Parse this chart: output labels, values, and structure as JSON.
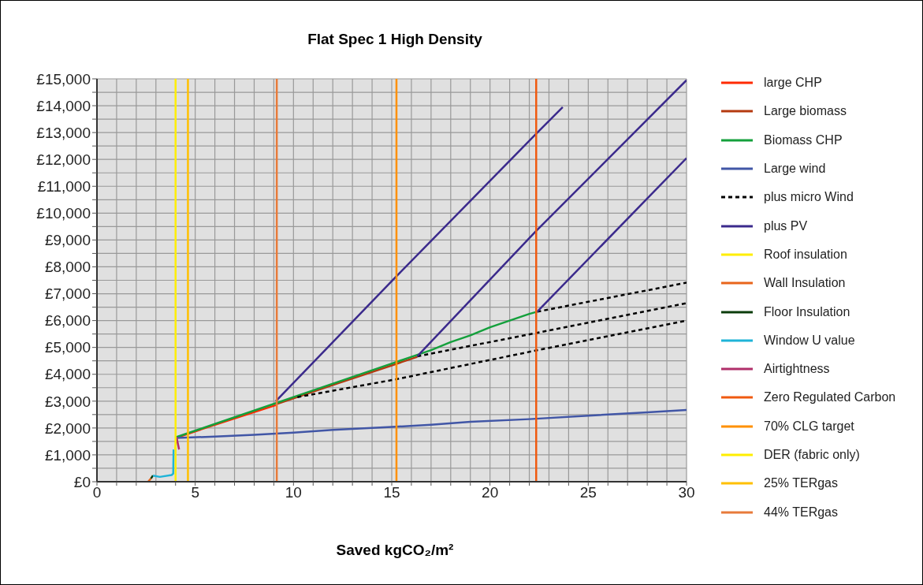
{
  "chart_data": {
    "type": "line",
    "title": "Flat Spec 1 High Density",
    "xlabel": "Saved kgCO₂/m²",
    "xlim": [
      0,
      30
    ],
    "xticks": [
      0,
      {
        "value": 1,
        "label": null
      },
      {
        "value": 2,
        "label": null
      },
      {
        "value": 3,
        "label": null
      },
      {
        "value": 4,
        "label": null
      },
      5,
      {
        "value": 6,
        "label": null
      },
      {
        "value": 7,
        "label": null
      },
      {
        "value": 8,
        "label": null
      },
      {
        "value": 9,
        "label": null
      },
      10,
      {
        "value": 11,
        "label": null
      },
      {
        "value": 12,
        "label": null
      },
      {
        "value": 13,
        "label": null
      },
      {
        "value": 14,
        "label": null
      },
      15,
      {
        "value": 16,
        "label": null
      },
      {
        "value": 17,
        "label": null
      },
      {
        "value": 18,
        "label": null
      },
      {
        "value": 19,
        "label": null
      },
      20,
      {
        "value": 21,
        "label": null
      },
      {
        "value": 22,
        "label": null
      },
      {
        "value": 23,
        "label": null
      },
      {
        "value": 24,
        "label": null
      },
      25,
      {
        "value": 26,
        "label": null
      },
      {
        "value": 27,
        "label": null
      },
      {
        "value": 28,
        "label": null
      },
      {
        "value": 29,
        "label": null
      },
      30
    ],
    "ylim": [
      0,
      15000
    ],
    "yticks": [
      {
        "value": 0,
        "label": "£0"
      },
      {
        "value": 500,
        "label": null
      },
      {
        "value": 1000,
        "label": "£1,000"
      },
      {
        "value": 1500,
        "label": null
      },
      {
        "value": 2000,
        "label": "£2,000"
      },
      {
        "value": 2500,
        "label": null
      },
      {
        "value": 3000,
        "label": "£3,000"
      },
      {
        "value": 3500,
        "label": null
      },
      {
        "value": 4000,
        "label": "£4,000"
      },
      {
        "value": 4500,
        "label": null
      },
      {
        "value": 5000,
        "label": "£5,000"
      },
      {
        "value": 5500,
        "label": null
      },
      {
        "value": 6000,
        "label": "£6,000"
      },
      {
        "value": 6500,
        "label": null
      },
      {
        "value": 7000,
        "label": "£7,000"
      },
      {
        "value": 7500,
        "label": null
      },
      {
        "value": 8000,
        "label": "£8,000"
      },
      {
        "value": 8500,
        "label": null
      },
      {
        "value": 9000,
        "label": "£9,000"
      },
      {
        "value": 9500,
        "label": null
      },
      {
        "value": 10000,
        "label": "£10,000"
      },
      {
        "value": 10500,
        "label": null
      },
      {
        "value": 11000,
        "label": "£11,000"
      },
      {
        "value": 11500,
        "label": null
      },
      {
        "value": 12000,
        "label": "£12,000"
      },
      {
        "value": 12500,
        "label": null
      },
      {
        "value": 13000,
        "label": "£13,000"
      },
      {
        "value": 13500,
        "label": null
      },
      {
        "value": 14000,
        "label": "£14,000"
      },
      {
        "value": 14500,
        "label": null
      },
      {
        "value": 15000,
        "label": "£15,000"
      }
    ],
    "grid": true,
    "legend": "right",
    "series": [
      {
        "name": "large CHP",
        "color": "#ff2a00",
        "x": [
          4,
          6,
          9.1
        ],
        "values": [
          1630,
          2120,
          2850
        ]
      },
      {
        "name": "Large biomass",
        "color": "#b53a10",
        "x": [
          9.1,
          12,
          15,
          16.3
        ],
        "values": [
          2880,
          3600,
          4330,
          4650
        ]
      },
      {
        "name": "Biomass CHP",
        "color": "#14a03c",
        "x": [
          4,
          5,
          6,
          7,
          8,
          9,
          10,
          11,
          12,
          13,
          14,
          15,
          16,
          17,
          18,
          19,
          20,
          21,
          22,
          22.4
        ],
        "values": [
          1650,
          1900,
          2150,
          2400,
          2650,
          2900,
          3150,
          3400,
          3650,
          3900,
          4150,
          4400,
          4650,
          4900,
          5200,
          5450,
          5750,
          6000,
          6250,
          6330
        ]
      },
      {
        "name": "Large wind",
        "color": "#4156a6",
        "x": [
          4,
          6,
          8,
          10,
          12,
          15,
          17,
          19,
          22,
          25,
          28,
          30
        ],
        "values": [
          1630,
          1680,
          1750,
          1830,
          1930,
          2040,
          2120,
          2230,
          2330,
          2460,
          2580,
          2670
        ]
      },
      {
        "name": "plus micro Wind",
        "color": "#000000",
        "line_style": "dashed",
        "x": [
          10.2,
          15.2,
          22.3,
          30
        ],
        "values": [
          3150,
          3810,
          4880,
          6000
        ]
      },
      {
        "color": "#000000",
        "line_style": "dashed",
        "x": [
          16.3,
          22.3,
          30
        ],
        "values": [
          4670,
          5530,
          6650
        ]
      },
      {
        "color": "#000000",
        "line_style": "dashed",
        "x": [
          22.4,
          30
        ],
        "values": [
          6330,
          7410
        ]
      },
      {
        "name": "plus PV",
        "color": "#3b2a8c",
        "x": [
          9.1,
          15.2,
          22.3,
          23.7
        ],
        "values": [
          3000,
          7620,
          12920,
          13950
        ]
      },
      {
        "color": "#3b2a8c",
        "x": [
          16.3,
          22.3,
          30
        ],
        "values": [
          4670,
          9300,
          14950
        ]
      },
      {
        "color": "#3b2a8c",
        "x": [
          22.4,
          30
        ],
        "values": [
          6330,
          12050
        ]
      },
      {
        "name": "Roof insulation",
        "color": "#ffee00",
        "x": [
          3.98,
          4.05
        ],
        "values": [
          1200,
          1650
        ]
      },
      {
        "name": "Wall Insulation",
        "color": "#e8651b",
        "x": [
          2.6,
          2.75
        ],
        "values": [
          0,
          120
        ]
      },
      {
        "name": "Floor Insulation",
        "color": "#0b3d0b",
        "x": [
          2.75,
          2.85
        ],
        "values": [
          120,
          230
        ]
      },
      {
        "name": "Window U value",
        "color": "#1fb4d8",
        "x": [
          2.85,
          3.2,
          3.8,
          3.88,
          3.9
        ],
        "values": [
          230,
          180,
          250,
          300,
          1200
        ]
      },
      {
        "name": "Airtightness",
        "color": "#b0306a",
        "x": [
          4.18,
          4.05
        ],
        "values": [
          1200,
          1650
        ]
      },
      {
        "name": "Zero Regulated Carbon",
        "color": "#f05a10",
        "x": [
          22.35,
          22.35
        ],
        "values": [
          0,
          15000
        ]
      },
      {
        "name": "70% CLG target",
        "color": "#ff9000",
        "x": [
          15.24,
          15.24
        ],
        "values": [
          0,
          15000
        ]
      },
      {
        "name": "DER (fabric only)",
        "color": "#ffee00",
        "x": [
          4.0,
          4.0
        ],
        "values": [
          0,
          15000
        ]
      },
      {
        "name": "25% TERgas",
        "color": "#ffc000",
        "x": [
          4.63,
          4.63
        ],
        "values": [
          0,
          15000
        ]
      },
      {
        "name": "44% TERgas",
        "color": "#e87a3a",
        "x": [
          9.15,
          9.15
        ],
        "values": [
          0,
          15000
        ]
      }
    ]
  }
}
